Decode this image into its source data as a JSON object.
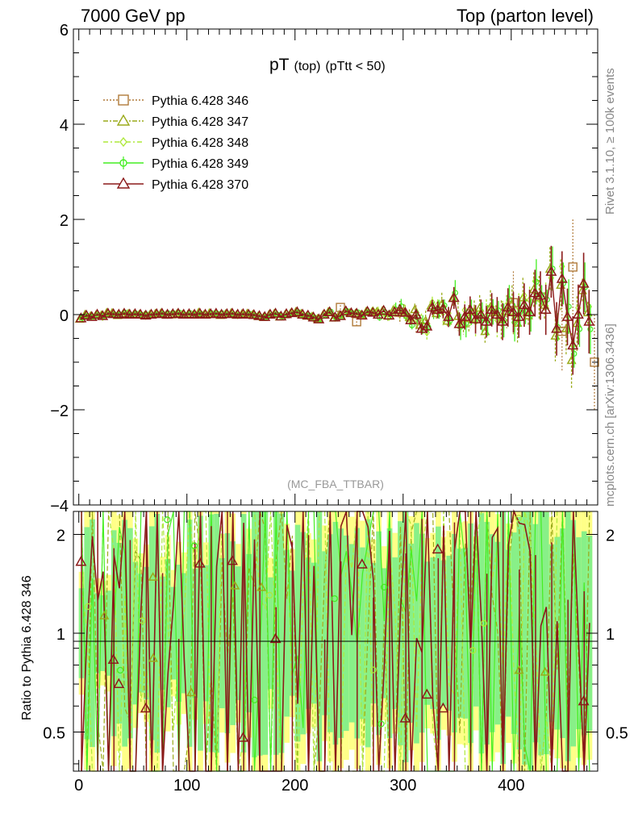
{
  "header": {
    "left": "7000 GeV pp",
    "right": "Top (parton level)"
  },
  "side_labels": {
    "rivet": "Rivet 3.1.10, ≥ 100k events",
    "mcplots": "mcplots.cern.ch [arXiv:1306.3436]"
  },
  "title": {
    "main": "pT",
    "sub1": "(top)",
    "sub2": "(pTtt < 50)"
  },
  "analysis": "(MC_FBA_TTBAR)",
  "ratio_ylabel": "Ratio to Pythia 6.428 346",
  "colors": {
    "s346": "#b07a3a",
    "s347": "#9aaa1a",
    "s348": "#aee83a",
    "s349": "#44ee22",
    "s370": "#8b1a1a",
    "band_yellow": "#ffff88",
    "band_green": "#88f088"
  },
  "chart_data": [
    {
      "type": "line",
      "title": "pT (top) (pTtt < 50)",
      "xlim": [
        -5,
        480
      ],
      "ylim": [
        -4,
        6
      ],
      "x_ticks": [
        0,
        100,
        200,
        300,
        400
      ],
      "y_ticks": [
        -4,
        -2,
        0,
        2,
        4,
        6
      ],
      "legend_position": "top-left",
      "series": [
        {
          "name": "Pythia 6.428 346",
          "marker": "square",
          "style": "dotted"
        },
        {
          "name": "Pythia 6.428 347",
          "marker": "triangle",
          "style": "dashdot"
        },
        {
          "name": "Pythia 6.428 348",
          "marker": "diamond",
          "style": "dashdot"
        },
        {
          "name": "Pythia 6.428 349",
          "marker": "circle-cross",
          "style": "solid"
        },
        {
          "name": "Pythia 6.428 370",
          "marker": "triangle",
          "style": "solid"
        }
      ],
      "bin_width": 5,
      "approx_values_note_free": true,
      "points_370": [
        [
          2,
          -0.08
        ],
        [
          7,
          -0.02
        ],
        [
          12,
          -0.05
        ],
        [
          17,
          0.0
        ],
        [
          22,
          -0.03
        ],
        [
          27,
          0.02
        ],
        [
          32,
          0.01
        ],
        [
          37,
          0.0
        ],
        [
          42,
          0.02
        ],
        [
          47,
          0.0
        ],
        [
          52,
          0.01
        ],
        [
          57,
          0.0
        ],
        [
          62,
          -0.02
        ],
        [
          67,
          0.0
        ],
        [
          72,
          0.01
        ],
        [
          77,
          0.02
        ],
        [
          82,
          0.0
        ],
        [
          87,
          0.01
        ],
        [
          92,
          0.02
        ],
        [
          97,
          0.0
        ],
        [
          102,
          0.01
        ],
        [
          107,
          0.0
        ],
        [
          112,
          0.02
        ],
        [
          117,
          0.0
        ],
        [
          122,
          0.01
        ],
        [
          127,
          0.02
        ],
        [
          132,
          0.0
        ],
        [
          137,
          0.01
        ],
        [
          142,
          0.02
        ],
        [
          147,
          0.0
        ],
        [
          152,
          0.01
        ],
        [
          157,
          0.0
        ],
        [
          162,
          -0.01
        ],
        [
          167,
          -0.03
        ],
        [
          172,
          -0.05
        ],
        [
          177,
          0.0
        ],
        [
          182,
          0.02
        ],
        [
          187,
          -0.04
        ],
        [
          192,
          0.01
        ],
        [
          197,
          0.03
        ],
        [
          202,
          0.05
        ],
        [
          207,
          0.0
        ],
        [
          212,
          -0.02
        ],
        [
          217,
          -0.06
        ],
        [
          222,
          -0.1
        ],
        [
          227,
          0.0
        ],
        [
          232,
          0.05
        ],
        [
          237,
          -0.06
        ],
        [
          242,
          -0.03
        ],
        [
          247,
          0.07
        ],
        [
          252,
          0.03
        ],
        [
          257,
          0.02
        ],
        [
          262,
          -0.02
        ],
        [
          267,
          0.06
        ],
        [
          272,
          0.04
        ],
        [
          277,
          0.0
        ],
        [
          282,
          0.08
        ],
        [
          287,
          -0.02
        ],
        [
          292,
          0.05
        ],
        [
          297,
          0.1
        ],
        [
          302,
          0.04
        ],
        [
          307,
          -0.12
        ],
        [
          312,
          0.0
        ],
        [
          317,
          -0.3
        ],
        [
          322,
          -0.25
        ],
        [
          327,
          0.15
        ],
        [
          332,
          0.1
        ],
        [
          337,
          0.12
        ],
        [
          342,
          -0.05
        ],
        [
          347,
          0.35
        ],
        [
          352,
          -0.2
        ],
        [
          357,
          -0.05
        ],
        [
          362,
          0.1
        ],
        [
          367,
          -0.1
        ],
        [
          372,
          0.0
        ],
        [
          377,
          -0.15
        ],
        [
          382,
          0.1
        ],
        [
          387,
          0.0
        ],
        [
          392,
          -0.15
        ],
        [
          397,
          0.15
        ],
        [
          402,
          0.05
        ],
        [
          407,
          -0.05
        ],
        [
          412,
          0.2
        ],
        [
          417,
          0.05
        ],
        [
          422,
          0.45
        ],
        [
          427,
          0.4
        ],
        [
          432,
          0.1
        ],
        [
          437,
          0.9
        ],
        [
          442,
          -0.3
        ],
        [
          447,
          0.75
        ],
        [
          452,
          -0.05
        ],
        [
          457,
          -0.65
        ],
        [
          462,
          0.0
        ],
        [
          467,
          0.65
        ],
        [
          472,
          -0.15
        ]
      ],
      "points_346": [
        [
          242,
          0.15
        ],
        [
          257,
          -0.15
        ],
        [
          297,
          0.05
        ],
        [
          312,
          -0.1
        ],
        [
          402,
          0.25
        ],
        [
          447,
          -0.35
        ],
        [
          457,
          1.0
        ],
        [
          477,
          -1.0
        ]
      ]
    },
    {
      "type": "line",
      "title": "",
      "ylabel": "Ratio to Pythia 6.428 346",
      "xlim": [
        -5,
        480
      ],
      "ylim": [
        0.38,
        2.35
      ],
      "y_tick_labels": [
        "0.5",
        "1",
        "2"
      ],
      "reference_line": 1,
      "marker_values_370": [
        [
          2,
          1.65
        ],
        [
          32,
          0.83
        ],
        [
          37,
          0.7
        ],
        [
          62,
          0.59
        ],
        [
          112,
          1.63
        ],
        [
          142,
          1.66
        ],
        [
          152,
          0.48
        ],
        [
          182,
          0.96
        ],
        [
          262,
          1.62
        ],
        [
          302,
          0.55
        ],
        [
          322,
          0.65
        ],
        [
          332,
          1.8
        ],
        [
          337,
          0.59
        ],
        [
          467,
          0.62
        ]
      ]
    }
  ]
}
